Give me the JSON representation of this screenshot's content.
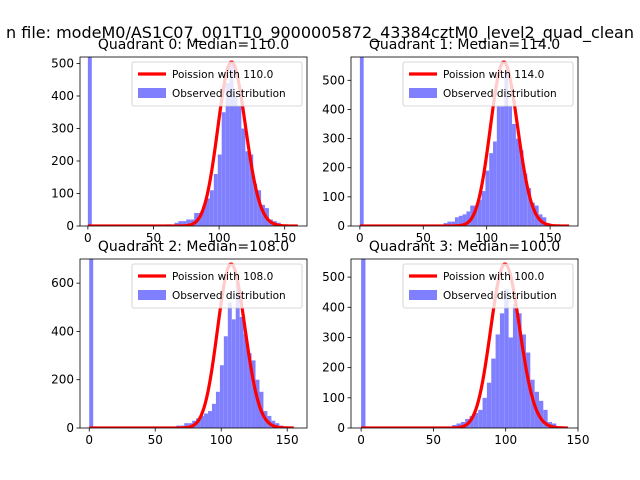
{
  "figure": {
    "suptitle": "n file: modeM0/AS1C07_001T10_9000005872_43384cztM0_level2_quad_clean"
  },
  "colors": {
    "poisson": "#ff0000",
    "observed": "#8080ff"
  },
  "chart_data": [
    {
      "type": "bar",
      "title": "Quadrant 0: Median=110.0",
      "xlim": [
        -6,
        167
      ],
      "ylim": [
        0,
        520
      ],
      "xticks": [
        0,
        50,
        100,
        150
      ],
      "yticks": [
        0,
        100,
        200,
        300,
        400,
        500
      ],
      "legend_position": "top-right",
      "legend": [
        "Poission with 110.0",
        "Observed distribution"
      ],
      "median": 110.0,
      "series": [
        {
          "name": "Observed distribution",
          "bins": [
            [
              0,
              3,
              520
            ],
            [
              60,
              63,
              5
            ],
            [
              66,
              69,
              10
            ],
            [
              69,
              72,
              15
            ],
            [
              72,
              75,
              15
            ],
            [
              75,
              78,
              20
            ],
            [
              78,
              81,
              20
            ],
            [
              81,
              84,
              40
            ],
            [
              84,
              87,
              40
            ],
            [
              87,
              90,
              60
            ],
            [
              90,
              93,
              85
            ],
            [
              93,
              96,
              110
            ],
            [
              96,
              99,
              160
            ],
            [
              99,
              102,
              220
            ],
            [
              102,
              105,
              350
            ],
            [
              105,
              108,
              440
            ],
            [
              108,
              111,
              500
            ],
            [
              111,
              114,
              400
            ],
            [
              114,
              117,
              370
            ],
            [
              117,
              120,
              300
            ],
            [
              120,
              123,
              230
            ],
            [
              123,
              126,
              220
            ],
            [
              126,
              129,
              130
            ],
            [
              129,
              132,
              110
            ],
            [
              132,
              135,
              65
            ],
            [
              135,
              138,
              55
            ],
            [
              138,
              141,
              20
            ],
            [
              141,
              144,
              15
            ],
            [
              144,
              147,
              10
            ]
          ]
        },
        {
          "name": "Poission with 110.0",
          "mean": 110.0,
          "xrange": [
            0,
            160
          ]
        }
      ]
    },
    {
      "type": "bar",
      "title": "Quadrant 1: Median=114.0",
      "xlim": [
        -7,
        172
      ],
      "ylim": [
        0,
        580
      ],
      "xticks": [
        0,
        50,
        100,
        150
      ],
      "yticks": [
        0,
        100,
        200,
        300,
        400,
        500
      ],
      "legend_position": "top-right",
      "legend": [
        "Poission with 114.0",
        "Observed distribution"
      ],
      "median": 114.0,
      "series": [
        {
          "name": "Observed distribution",
          "bins": [
            [
              0,
              3,
              580
            ],
            [
              60,
              63,
              5
            ],
            [
              66,
              69,
              10
            ],
            [
              69,
              72,
              15
            ],
            [
              72,
              75,
              15
            ],
            [
              75,
              78,
              30
            ],
            [
              78,
              81,
              35
            ],
            [
              81,
              84,
              40
            ],
            [
              84,
              87,
              50
            ],
            [
              87,
              90,
              70
            ],
            [
              90,
              93,
              70
            ],
            [
              93,
              96,
              90
            ],
            [
              96,
              99,
              120
            ],
            [
              99,
              102,
              190
            ],
            [
              102,
              105,
              250
            ],
            [
              105,
              108,
              290
            ],
            [
              108,
              111,
              410
            ],
            [
              111,
              114,
              410
            ],
            [
              114,
              117,
              530
            ],
            [
              117,
              120,
              410
            ],
            [
              120,
              123,
              350
            ],
            [
              123,
              126,
              300
            ],
            [
              126,
              129,
              260
            ],
            [
              129,
              132,
              180
            ],
            [
              132,
              135,
              130
            ],
            [
              135,
              138,
              80
            ],
            [
              138,
              141,
              70
            ],
            [
              141,
              144,
              40
            ],
            [
              144,
              147,
              30
            ],
            [
              147,
              150,
              10
            ]
          ]
        },
        {
          "name": "Poission with 114.0",
          "mean": 114.0,
          "xrange": [
            0,
            165
          ]
        }
      ]
    },
    {
      "type": "bar",
      "title": "Quadrant 2: Median=108.0",
      "xlim": [
        -7,
        165
      ],
      "ylim": [
        0,
        700
      ],
      "xticks": [
        0,
        50,
        100,
        150
      ],
      "yticks": [
        0,
        200,
        400,
        600
      ],
      "legend_position": "top-right",
      "legend": [
        "Poission with 108.0",
        "Observed distribution"
      ],
      "median": 108.0,
      "series": [
        {
          "name": "Observed distribution",
          "bins": [
            [
              0,
              3,
              700
            ],
            [
              60,
              63,
              5
            ],
            [
              66,
              69,
              10
            ],
            [
              69,
              72,
              10
            ],
            [
              72,
              75,
              20
            ],
            [
              75,
              78,
              20
            ],
            [
              78,
              81,
              30
            ],
            [
              81,
              84,
              40
            ],
            [
              84,
              87,
              50
            ],
            [
              87,
              90,
              60
            ],
            [
              90,
              93,
              70
            ],
            [
              93,
              96,
              100
            ],
            [
              96,
              99,
              150
            ],
            [
              99,
              102,
              260
            ],
            [
              102,
              105,
              380
            ],
            [
              105,
              108,
              520
            ],
            [
              108,
              111,
              450
            ],
            [
              111,
              114,
              600
            ],
            [
              114,
              117,
              460
            ],
            [
              117,
              120,
              390
            ],
            [
              120,
              123,
              310
            ],
            [
              123,
              126,
              280
            ],
            [
              126,
              129,
              200
            ],
            [
              129,
              132,
              150
            ],
            [
              132,
              135,
              70
            ],
            [
              135,
              138,
              50
            ],
            [
              138,
              141,
              30
            ],
            [
              141,
              144,
              20
            ],
            [
              144,
              147,
              10
            ]
          ]
        },
        {
          "name": "Poission with 108.0",
          "mean": 108.0,
          "xrange": [
            0,
            155
          ]
        }
      ]
    },
    {
      "type": "bar",
      "title": "Quadrant 3: Median=100.0",
      "xlim": [
        -7,
        150
      ],
      "ylim": [
        0,
        560
      ],
      "xticks": [
        0,
        50,
        100,
        150
      ],
      "yticks": [
        0,
        100,
        200,
        300,
        400,
        500
      ],
      "legend_position": "top-right",
      "legend": [
        "Poission with 100.0",
        "Observed distribution"
      ],
      "median": 100.0,
      "series": [
        {
          "name": "Observed distribution",
          "bins": [
            [
              0,
              3,
              560
            ],
            [
              60,
              63,
              5
            ],
            [
              63,
              66,
              10
            ],
            [
              66,
              69,
              15
            ],
            [
              69,
              72,
              20
            ],
            [
              72,
              75,
              30
            ],
            [
              75,
              78,
              40
            ],
            [
              78,
              81,
              50
            ],
            [
              81,
              84,
              60
            ],
            [
              84,
              87,
              100
            ],
            [
              87,
              90,
              150
            ],
            [
              90,
              93,
              230
            ],
            [
              93,
              96,
              310
            ],
            [
              96,
              99,
              380
            ],
            [
              99,
              102,
              460
            ],
            [
              102,
              105,
              300
            ],
            [
              105,
              108,
              410
            ],
            [
              108,
              111,
              380
            ],
            [
              111,
              114,
              310
            ],
            [
              114,
              117,
              250
            ],
            [
              117,
              120,
              160
            ],
            [
              120,
              123,
              120
            ],
            [
              123,
              126,
              90
            ],
            [
              126,
              129,
              60
            ],
            [
              129,
              132,
              20
            ],
            [
              132,
              135,
              15
            ]
          ]
        },
        {
          "name": "Poission with 100.0",
          "mean": 100.0,
          "xrange": [
            0,
            143
          ]
        }
      ]
    }
  ]
}
